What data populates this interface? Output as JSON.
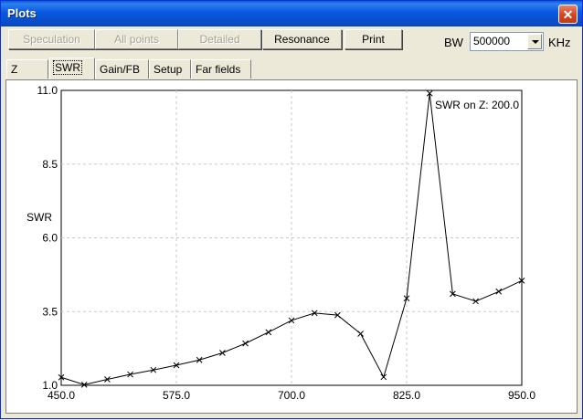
{
  "window": {
    "title": "Plots"
  },
  "toolbar": {
    "speculation_label": "Speculation",
    "all_points_label": "All points",
    "detailed_label": "Detailed",
    "resonance_label": "Resonance",
    "print_label": "Print",
    "bw_label": "BW",
    "bw_value": "500000",
    "bw_unit": "KHz"
  },
  "tabs": [
    {
      "label": "Z"
    },
    {
      "label": "SWR",
      "active": true
    },
    {
      "label": "Gain/FB"
    },
    {
      "label": "Setup"
    },
    {
      "label": "Far fields"
    }
  ],
  "chart_data": {
    "type": "line",
    "title": "SWR on Z: 200.0",
    "xlabel": "",
    "ylabel": "SWR",
    "xlim": [
      450.0,
      950.0
    ],
    "ylim": [
      1.0,
      11.0
    ],
    "x_ticks": [
      "450.0",
      "575.0",
      "700.0",
      "825.0",
      "950.0"
    ],
    "y_ticks": [
      "1.0",
      "3.5",
      "6.0",
      "8.5",
      "11.0"
    ],
    "grid": true,
    "series": [
      {
        "x": [
          450,
          475,
          500,
          525,
          550,
          575,
          600,
          625,
          650,
          675,
          700,
          725,
          750,
          775,
          800,
          825,
          850,
          875,
          900,
          925,
          950
        ],
        "y": [
          1.27,
          1.02,
          1.2,
          1.37,
          1.52,
          1.68,
          1.86,
          2.1,
          2.42,
          2.8,
          3.2,
          3.45,
          3.38,
          2.75,
          1.28,
          3.95,
          10.9,
          4.1,
          3.85,
          4.18,
          4.55
        ]
      }
    ]
  }
}
